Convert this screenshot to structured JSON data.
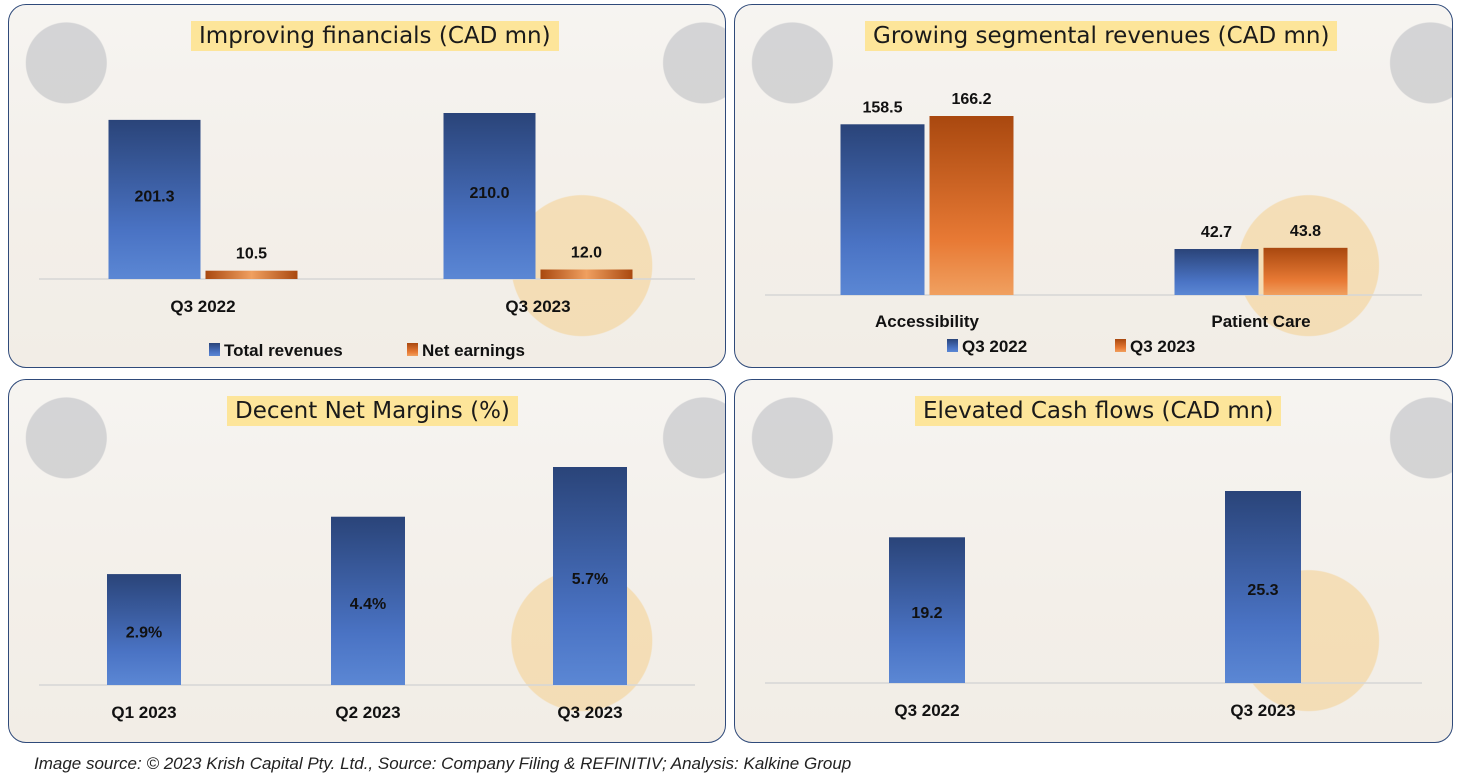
{
  "colors": {
    "blue_top": "#2a4479",
    "blue_bottom": "#5b87d4",
    "orange_top": "#a9480f",
    "orange_bottom": "#f0a060",
    "title_bg": "#fde59a",
    "panel_border": "#2f4a7a"
  },
  "chart_data": [
    {
      "type": "bar",
      "title": "Improving financials (CAD mn)",
      "categories": [
        "Q3 2022",
        "Q3 2023"
      ],
      "series": [
        {
          "name": "Total revenues",
          "color": "blue",
          "values": [
            201.3,
            210.0
          ],
          "labels": [
            "201.3",
            "210.0"
          ]
        },
        {
          "name": "Net  earnings",
          "color": "orange",
          "values": [
            10.5,
            12.0
          ],
          "labels": [
            "10.5",
            "12.0"
          ]
        }
      ],
      "legend": "bottom",
      "label_position": [
        "inside",
        "above"
      ],
      "ylim": [
        0,
        210
      ]
    },
    {
      "type": "bar",
      "title": "Growing segmental revenues (CAD mn)",
      "categories": [
        "Accessibility",
        "Patient Care"
      ],
      "series": [
        {
          "name": "Q3 2022",
          "color": "blue",
          "values": [
            158.5,
            42.7
          ],
          "labels": [
            "158.5",
            "42.7"
          ]
        },
        {
          "name": "Q3 2023",
          "color": "orange",
          "values": [
            166.2,
            43.8
          ],
          "labels": [
            "166.2",
            "43.8"
          ]
        }
      ],
      "legend": "bottom",
      "label_position": [
        "above",
        "above"
      ],
      "ylim": [
        0,
        166.2
      ]
    },
    {
      "type": "bar",
      "title": "Decent Net Margins (%)",
      "categories": [
        "Q1 2023",
        "Q2 2023",
        "Q3 2023"
      ],
      "series": [
        {
          "name": "Net margin",
          "color": "blue",
          "values": [
            2.9,
            4.4,
            5.7
          ],
          "labels": [
            "2.9%",
            "4.4%",
            "5.7%"
          ]
        }
      ],
      "legend": "none",
      "label_position": [
        "inside"
      ],
      "ylim": [
        0,
        5.7
      ]
    },
    {
      "type": "bar",
      "title": "Elevated Cash flows (CAD mn)",
      "categories": [
        "Q3 2022",
        "Q3 2023"
      ],
      "series": [
        {
          "name": "Cash flow",
          "color": "blue",
          "values": [
            19.2,
            25.3
          ],
          "labels": [
            "19.2",
            "25.3"
          ]
        }
      ],
      "legend": "none",
      "label_position": [
        "inside"
      ],
      "ylim": [
        0,
        25.3
      ]
    }
  ],
  "footer": {
    "source_text": "Image source: © 2023 Krish Capital Pty. Ltd., Source: Company Filing & REFINITIV; Analysis: Kalkine Group"
  }
}
